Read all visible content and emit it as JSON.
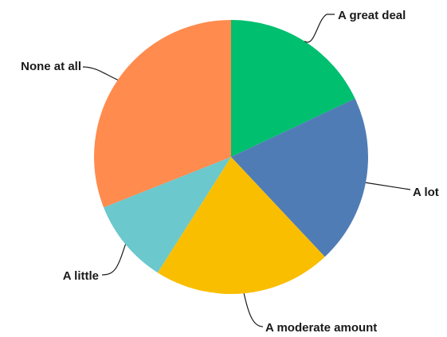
{
  "chart_data": {
    "type": "pie",
    "title": "",
    "start_angle_deg": 0,
    "direction": "clockwise",
    "slices": [
      {
        "label": "A great deal",
        "value": 18,
        "color": "#00bf6f"
      },
      {
        "label": "A lot",
        "value": 20,
        "color": "#507cb6"
      },
      {
        "label": "A moderate amount",
        "value": 21,
        "color": "#f9be00"
      },
      {
        "label": "A little",
        "value": 10,
        "color": "#6bc8cd"
      },
      {
        "label": "None at all",
        "value": 31,
        "color": "#ff8b4f"
      }
    ],
    "legend": "none"
  }
}
